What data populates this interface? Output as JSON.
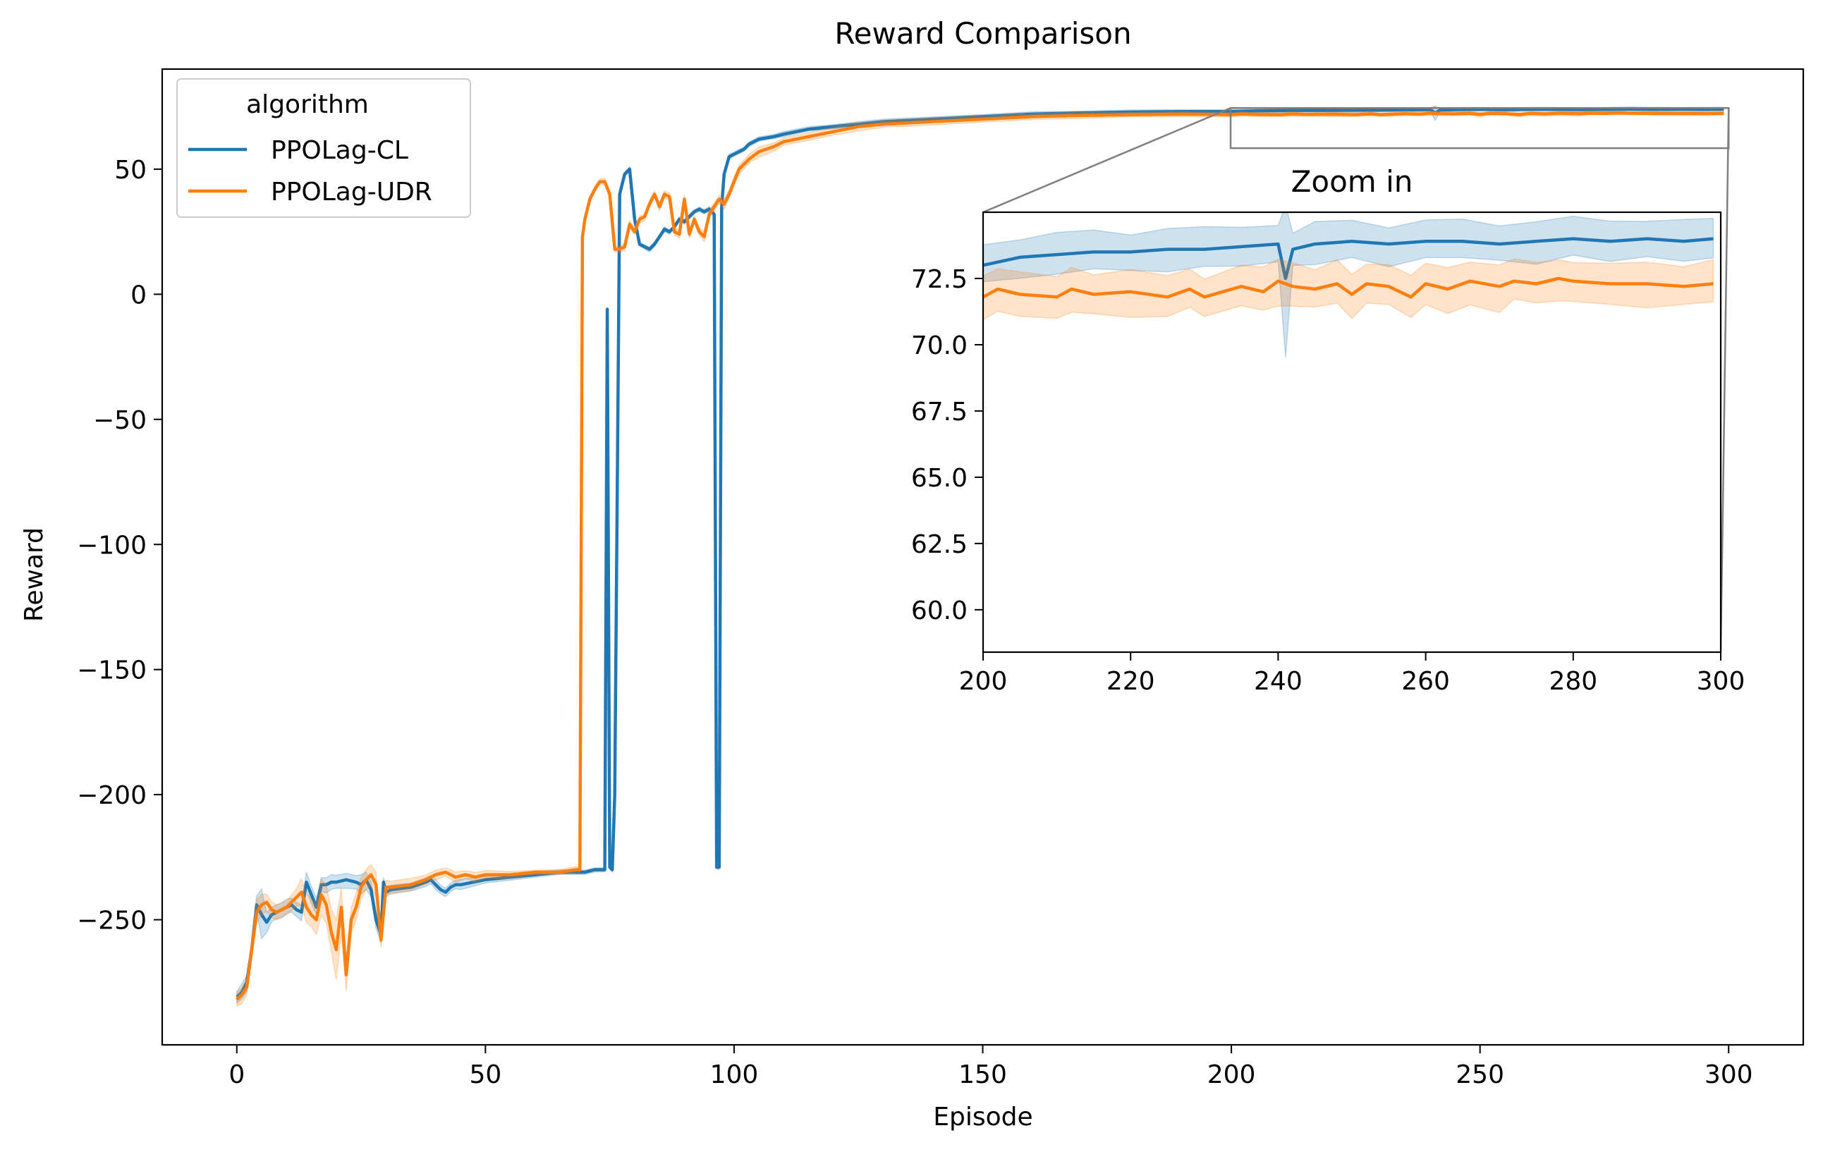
{
  "chart_data": [
    {
      "type": "line",
      "title": "Reward Comparison",
      "xlabel": "Episode",
      "ylabel": "Reward",
      "xlim": [
        -15,
        315
      ],
      "ylim": [
        -300,
        90
      ],
      "xticks": [
        0,
        50,
        100,
        150,
        200,
        250,
        300
      ],
      "yticks": [
        -250,
        -200,
        -150,
        -100,
        -50,
        0,
        50
      ],
      "xtick_labels": [
        "0",
        "50",
        "100",
        "150",
        "200",
        "250",
        "300"
      ],
      "ytick_labels": [
        "−250",
        "−200",
        "−150",
        "−100",
        "−50",
        "0",
        "50"
      ],
      "legend": {
        "title": "algorithm",
        "placement": "top-left"
      },
      "series": [
        {
          "name": "PPOLag-CL",
          "color": "#1f77b4",
          "points": [
            [
              0,
              -281
            ],
            [
              1,
              -279
            ],
            [
              2,
              -275
            ],
            [
              3,
              -262
            ],
            [
              4,
              -244
            ],
            [
              5,
              -248
            ],
            [
              6,
              -251
            ],
            [
              7,
              -248
            ],
            [
              8,
              -247
            ],
            [
              9,
              -246
            ],
            [
              10,
              -245
            ],
            [
              11,
              -244
            ],
            [
              12,
              -246
            ],
            [
              13,
              -247
            ],
            [
              14,
              -235
            ],
            [
              15,
              -240
            ],
            [
              16,
              -245
            ],
            [
              17,
              -236
            ],
            [
              18,
              -236
            ],
            [
              19,
              -235
            ],
            [
              20,
              -235
            ],
            [
              22,
              -234
            ],
            [
              24,
              -235
            ],
            [
              25,
              -236
            ],
            [
              26,
              -234
            ],
            [
              27,
              -238
            ],
            [
              28,
              -250
            ],
            [
              29,
              -256
            ],
            [
              29.5,
              -235
            ],
            [
              30,
              -239
            ],
            [
              31,
              -238
            ],
            [
              35,
              -237
            ],
            [
              38,
              -235
            ],
            [
              39,
              -234
            ],
            [
              40,
              -236
            ],
            [
              41,
              -238
            ],
            [
              42,
              -239
            ],
            [
              43,
              -237
            ],
            [
              44,
              -236
            ],
            [
              45,
              -236
            ],
            [
              50,
              -234
            ],
            [
              55,
              -233
            ],
            [
              60,
              -232
            ],
            [
              65,
              -231
            ],
            [
              70,
              -231
            ],
            [
              72,
              -230
            ],
            [
              74,
              -230
            ],
            [
              74.5,
              -6
            ],
            [
              75,
              -229
            ],
            [
              75.5,
              -230
            ],
            [
              76,
              -200
            ],
            [
              77,
              40
            ],
            [
              78,
              48
            ],
            [
              79,
              50
            ],
            [
              80,
              30
            ],
            [
              81,
              20
            ],
            [
              82,
              19
            ],
            [
              83,
              18
            ],
            [
              84,
              20
            ],
            [
              85,
              23
            ],
            [
              86,
              26
            ],
            [
              87,
              25
            ],
            [
              88,
              27
            ],
            [
              89,
              30
            ],
            [
              90,
              29
            ],
            [
              91,
              31
            ],
            [
              92,
              33
            ],
            [
              93,
              34
            ],
            [
              94,
              33
            ],
            [
              95,
              34
            ],
            [
              96,
              32
            ],
            [
              96.5,
              -229
            ],
            [
              97,
              -229
            ],
            [
              97.5,
              35
            ],
            [
              98,
              48
            ],
            [
              99,
              55
            ],
            [
              100,
              56
            ],
            [
              101,
              57
            ],
            [
              102,
              58
            ],
            [
              103,
              60
            ],
            [
              105,
              62
            ],
            [
              108,
              63
            ],
            [
              110,
              64
            ],
            [
              115,
              66
            ],
            [
              120,
              67
            ],
            [
              125,
              68
            ],
            [
              130,
              69
            ],
            [
              140,
              70
            ],
            [
              150,
              71
            ],
            [
              160,
              72
            ],
            [
              170,
              72.5
            ],
            [
              180,
              72.8
            ],
            [
              190,
              73
            ],
            [
              200,
              73
            ],
            [
              205,
              73.3
            ],
            [
              210,
              73.4
            ],
            [
              215,
              73.5
            ],
            [
              220,
              73.5
            ],
            [
              225,
              73.6
            ],
            [
              230,
              73.6
            ],
            [
              235,
              73.7
            ],
            [
              240,
              73.8
            ],
            [
              241,
              72.5
            ],
            [
              242,
              73.6
            ],
            [
              245,
              73.8
            ],
            [
              250,
              73.9
            ],
            [
              255,
              73.8
            ],
            [
              260,
              73.9
            ],
            [
              265,
              73.9
            ],
            [
              270,
              73.8
            ],
            [
              275,
              73.9
            ],
            [
              280,
              74
            ],
            [
              285,
              73.9
            ],
            [
              290,
              74
            ],
            [
              295,
              73.9
            ],
            [
              299,
              74
            ]
          ],
          "band": [
            [
              0,
              3
            ],
            [
              4,
              4
            ],
            [
              5,
              10
            ],
            [
              6,
              4
            ],
            [
              10,
              3
            ],
            [
              14,
              4
            ],
            [
              20,
              3
            ],
            [
              28,
              4
            ],
            [
              30,
              2
            ],
            [
              42,
              2
            ],
            [
              45,
              2
            ],
            [
              60,
              1
            ],
            [
              99,
              1
            ],
            [
              200,
              0.8
            ],
            [
              240,
              0.8
            ],
            [
              241,
              3
            ],
            [
              242,
              0.8
            ],
            [
              299,
              0.8
            ]
          ]
        },
        {
          "name": "PPOLag-UDR",
          "color": "#ff7f0e",
          "points": [
            [
              0,
              -282
            ],
            [
              1,
              -280
            ],
            [
              2,
              -277
            ],
            [
              3,
              -262
            ],
            [
              4,
              -247
            ],
            [
              5,
              -244
            ],
            [
              6,
              -243
            ],
            [
              7,
              -246
            ],
            [
              8,
              -247
            ],
            [
              10,
              -245
            ],
            [
              12,
              -241
            ],
            [
              13,
              -239
            ],
            [
              14,
              -245
            ],
            [
              15,
              -248
            ],
            [
              16,
              -250
            ],
            [
              17,
              -240
            ],
            [
              18,
              -244
            ],
            [
              19,
              -255
            ],
            [
              20,
              -262
            ],
            [
              21,
              -245
            ],
            [
              22,
              -272
            ],
            [
              23,
              -250
            ],
            [
              24,
              -245
            ],
            [
              25,
              -237
            ],
            [
              26,
              -234
            ],
            [
              27,
              -232
            ],
            [
              28,
              -236
            ],
            [
              29,
              -258
            ],
            [
              30,
              -237
            ],
            [
              31,
              -237
            ],
            [
              35,
              -236
            ],
            [
              38,
              -234
            ],
            [
              40,
              -232
            ],
            [
              42,
              -231
            ],
            [
              44,
              -233
            ],
            [
              46,
              -232
            ],
            [
              48,
              -233
            ],
            [
              50,
              -232
            ],
            [
              55,
              -232
            ],
            [
              60,
              -231
            ],
            [
              65,
              -231
            ],
            [
              68,
              -230
            ],
            [
              69,
              -230
            ],
            [
              69.5,
              23
            ],
            [
              70,
              30
            ],
            [
              71,
              38
            ],
            [
              72,
              42
            ],
            [
              73,
              45
            ],
            [
              74,
              45
            ],
            [
              75,
              40
            ],
            [
              76,
              18
            ],
            [
              77,
              18
            ],
            [
              78,
              19
            ],
            [
              79,
              28
            ],
            [
              80,
              25
            ],
            [
              81,
              30
            ],
            [
              82,
              31
            ],
            [
              83,
              36
            ],
            [
              84,
              40
            ],
            [
              85,
              35
            ],
            [
              86,
              40
            ],
            [
              87,
              39
            ],
            [
              88,
              25
            ],
            [
              89,
              24
            ],
            [
              90,
              38
            ],
            [
              91,
              24
            ],
            [
              92,
              30
            ],
            [
              93,
              25
            ],
            [
              94,
              23
            ],
            [
              95,
              32
            ],
            [
              96,
              35
            ],
            [
              97,
              38
            ],
            [
              98,
              36
            ],
            [
              99,
              40
            ],
            [
              100,
              45
            ],
            [
              101,
              50
            ],
            [
              102,
              52
            ],
            [
              103,
              54
            ],
            [
              105,
              57
            ],
            [
              108,
              59
            ],
            [
              110,
              61
            ],
            [
              115,
              63
            ],
            [
              120,
              65
            ],
            [
              125,
              67
            ],
            [
              130,
              68
            ],
            [
              140,
              69
            ],
            [
              150,
              70
            ],
            [
              160,
              71
            ],
            [
              170,
              71.5
            ],
            [
              180,
              71.8
            ],
            [
              190,
              72
            ],
            [
              200,
              71.8
            ],
            [
              202,
              72.1
            ],
            [
              205,
              71.9
            ],
            [
              210,
              71.8
            ],
            [
              212,
              72.1
            ],
            [
              215,
              71.9
            ],
            [
              220,
              72
            ],
            [
              225,
              71.8
            ],
            [
              228,
              72.1
            ],
            [
              230,
              71.8
            ],
            [
              235,
              72.2
            ],
            [
              238,
              72
            ],
            [
              240,
              72.4
            ],
            [
              242,
              72.2
            ],
            [
              245,
              72.1
            ],
            [
              248,
              72.3
            ],
            [
              250,
              71.9
            ],
            [
              252,
              72.3
            ],
            [
              255,
              72.2
            ],
            [
              258,
              71.8
            ],
            [
              260,
              72.3
            ],
            [
              263,
              72.1
            ],
            [
              266,
              72.4
            ],
            [
              270,
              72.2
            ],
            [
              272,
              72.4
            ],
            [
              275,
              72.3
            ],
            [
              278,
              72.5
            ],
            [
              280,
              72.4
            ],
            [
              285,
              72.3
            ],
            [
              290,
              72.3
            ],
            [
              295,
              72.2
            ],
            [
              299,
              72.3
            ]
          ],
          "band": [
            [
              0,
              3
            ],
            [
              4,
              5
            ],
            [
              6,
              4
            ],
            [
              10,
              3
            ],
            [
              14,
              6
            ],
            [
              18,
              8
            ],
            [
              20,
              12
            ],
            [
              22,
              8
            ],
            [
              24,
              5
            ],
            [
              28,
              5
            ],
            [
              30,
              3
            ],
            [
              40,
              2
            ],
            [
              45,
              2
            ],
            [
              60,
              1
            ],
            [
              99,
              2
            ],
            [
              200,
              0.9
            ],
            [
              299,
              0.9
            ]
          ]
        }
      ]
    },
    {
      "type": "line",
      "title": "Zoom in",
      "xlim": [
        200,
        300
      ],
      "ylim": [
        58.4,
        75.0
      ],
      "xticks": [
        200,
        220,
        240,
        260,
        280,
        300
      ],
      "yticks": [
        60.0,
        62.5,
        65.0,
        67.5,
        70.0,
        72.5
      ],
      "xtick_labels": [
        "200",
        "220",
        "240",
        "260",
        "280",
        "300"
      ],
      "ytick_labels": [
        "60.0",
        "62.5",
        "65.0",
        "67.5",
        "70.0",
        "72.5"
      ]
    }
  ]
}
